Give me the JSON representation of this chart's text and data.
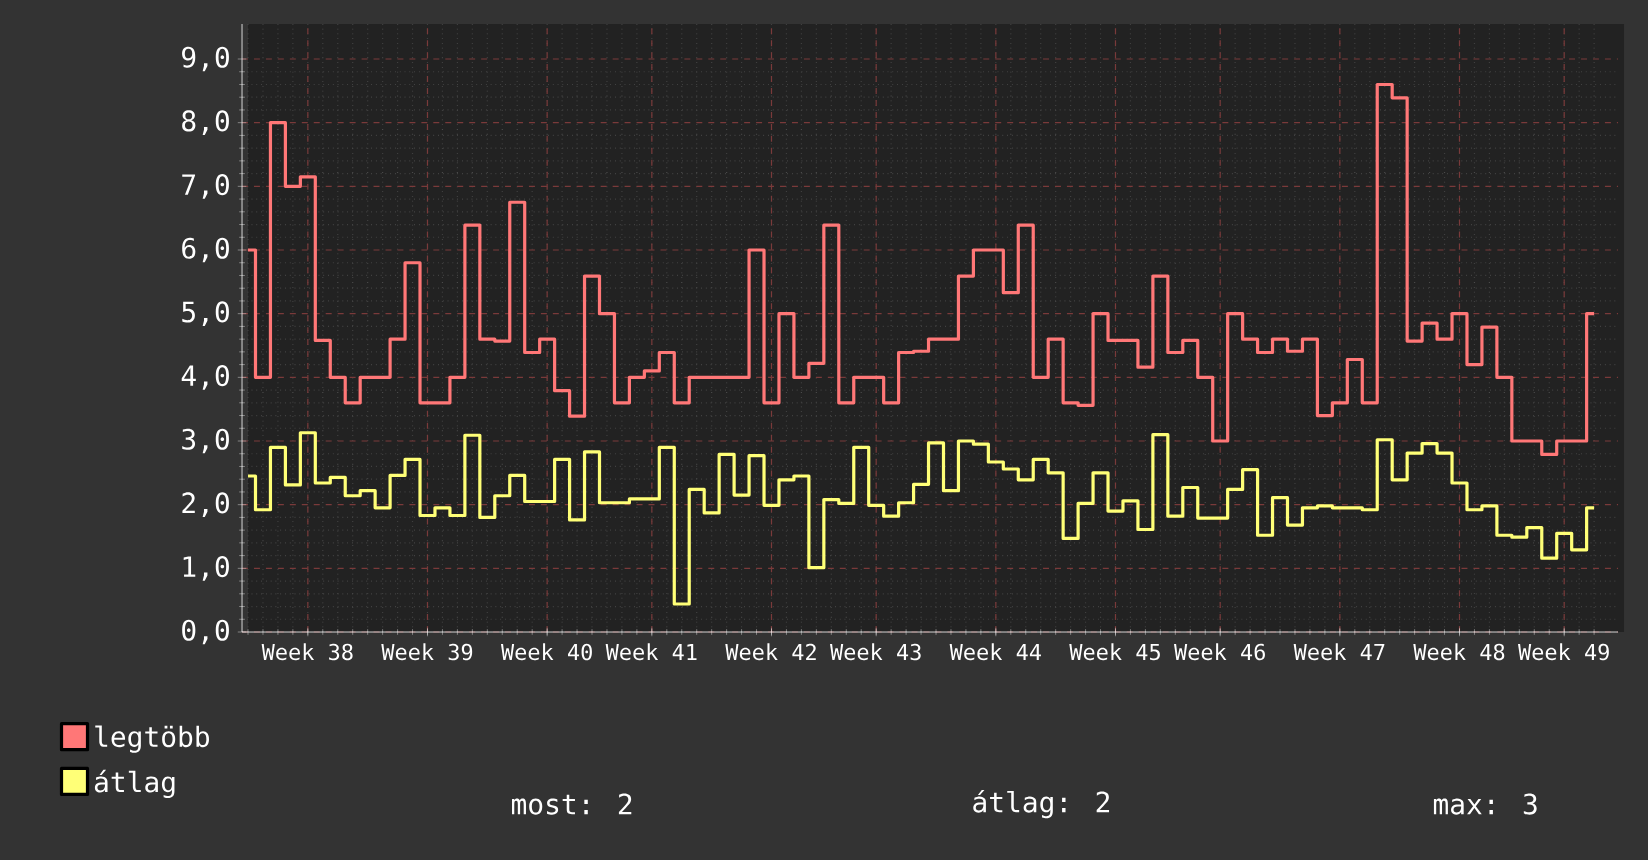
{
  "chart_data": {
    "type": "step",
    "categories": [
      null,
      null,
      null,
      null,
      "Week 38",
      null,
      null,
      null,
      null,
      null,
      null,
      null,
      "Week 39",
      null,
      null,
      null,
      null,
      null,
      null,
      null,
      "Week 40",
      null,
      null,
      null,
      null,
      null,
      null,
      "Week 41",
      null,
      null,
      null,
      null,
      null,
      null,
      null,
      "Week 42",
      null,
      null,
      null,
      null,
      null,
      null,
      "Week 43",
      null,
      null,
      null,
      null,
      null,
      null,
      null,
      "Week 44",
      null,
      null,
      null,
      null,
      null,
      null,
      null,
      "Week 45",
      null,
      null,
      null,
      null,
      null,
      null,
      "Week 46",
      null,
      null,
      null,
      null,
      null,
      null,
      null,
      "Week 47",
      null,
      null,
      null,
      null,
      null,
      null,
      null,
      "Week 48",
      null,
      null,
      null,
      null,
      null,
      null,
      "Week 49",
      null,
      null
    ],
    "ylim": [
      0,
      9.55
    ],
    "yticks": [
      {
        "value": 0,
        "label": "0,0"
      },
      {
        "value": 1,
        "label": "1,0"
      },
      {
        "value": 2,
        "label": "2,0"
      },
      {
        "value": 3,
        "label": "3,0"
      },
      {
        "value": 4,
        "label": "4,0"
      },
      {
        "value": 5,
        "label": "5,0"
      },
      {
        "value": 6,
        "label": "6,0"
      },
      {
        "value": 7,
        "label": "7,0"
      },
      {
        "value": 8,
        "label": "8,0"
      },
      {
        "value": 9,
        "label": "9,0"
      }
    ],
    "grid": true,
    "legend": "bottom",
    "annotations": [
      "most: 2",
      "átlag: 2",
      "max: 3"
    ],
    "series": [
      {
        "name": "legtöbb",
        "color": "#ff7777",
        "values": [
          6.0,
          4.0,
          8.0,
          7.0,
          7.15,
          4.58,
          4.0,
          3.6,
          4.0,
          4.0,
          4.6,
          5.8,
          3.6,
          3.6,
          4.0,
          6.39,
          4.6,
          4.57,
          6.75,
          4.39,
          4.6,
          3.79,
          3.39,
          5.59,
          5.0,
          3.6,
          4.0,
          4.1,
          4.39,
          3.6,
          4.0,
          4.0,
          4.0,
          4.0,
          6.0,
          3.6,
          5.0,
          4.0,
          4.22,
          6.39,
          3.6,
          4.0,
          4.0,
          3.6,
          4.39,
          4.41,
          4.6,
          4.6,
          5.59,
          6.0,
          6.0,
          5.33,
          6.39,
          4.0,
          4.6,
          3.6,
          3.56,
          5.0,
          4.58,
          4.58,
          4.16,
          5.59,
          4.39,
          4.58,
          4.0,
          3.0,
          5.0,
          4.6,
          4.39,
          4.6,
          4.41,
          4.6,
          3.4,
          3.6,
          4.28,
          3.6,
          8.6,
          8.39,
          4.57,
          4.85,
          4.6,
          5.0,
          4.2,
          4.79,
          4.0,
          3.0,
          3.0,
          2.79,
          3.0,
          3.0,
          5.0
        ]
      },
      {
        "name": "átlag",
        "color": "#ffff77",
        "values": [
          2.45,
          1.92,
          2.9,
          2.31,
          3.13,
          2.34,
          2.43,
          2.14,
          2.22,
          1.95,
          2.46,
          2.71,
          1.83,
          1.95,
          1.83,
          3.09,
          1.8,
          2.14,
          2.46,
          2.05,
          2.05,
          2.71,
          1.76,
          2.83,
          2.03,
          2.03,
          2.09,
          2.09,
          2.9,
          0.44,
          2.24,
          1.87,
          2.79,
          2.15,
          2.77,
          1.99,
          2.39,
          2.45,
          1.01,
          2.08,
          2.02,
          2.9,
          1.99,
          1.82,
          2.03,
          2.32,
          2.97,
          2.22,
          3.0,
          2.95,
          2.67,
          2.56,
          2.39,
          2.71,
          2.5,
          1.47,
          2.02,
          2.5,
          1.9,
          2.06,
          1.61,
          3.1,
          1.82,
          2.27,
          1.79,
          1.79,
          2.24,
          2.55,
          1.52,
          2.11,
          1.68,
          1.95,
          1.98,
          1.95,
          1.95,
          1.92,
          3.02,
          2.39,
          2.81,
          2.96,
          2.81,
          2.34,
          1.92,
          1.98,
          1.52,
          1.49,
          1.64,
          1.16,
          1.55,
          1.29,
          1.95
        ]
      }
    ]
  }
}
